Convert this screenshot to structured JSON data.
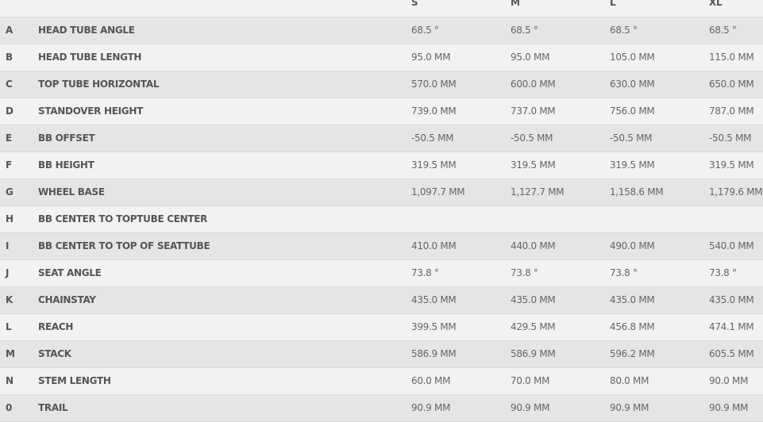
{
  "headers": [
    "",
    "",
    "S",
    "M",
    "L",
    "XL"
  ],
  "rows": [
    {
      "key": "A",
      "label": "HEAD TUBE ANGLE",
      "values": [
        "68.5 °",
        "68.5 °",
        "68.5 °",
        "68.5 °"
      ]
    },
    {
      "key": "B",
      "label": "HEAD TUBE LENGTH",
      "values": [
        "95.0 MM",
        "95.0 MM",
        "105.0 MM",
        "115.0 MM"
      ]
    },
    {
      "key": "C",
      "label": "TOP TUBE HORIZONTAL",
      "values": [
        "570.0 MM",
        "600.0 MM",
        "630.0 MM",
        "650.0 MM"
      ]
    },
    {
      "key": "D",
      "label": "STANDOVER HEIGHT",
      "values": [
        "739.0 MM",
        "737.0 MM",
        "756.0 MM",
        "787.0 MM"
      ]
    },
    {
      "key": "E",
      "label": "BB OFFSET",
      "values": [
        "-50.5 MM",
        "-50.5 MM",
        "-50.5 MM",
        "-50.5 MM"
      ]
    },
    {
      "key": "F",
      "label": "BB HEIGHT",
      "values": [
        "319.5 MM",
        "319.5 MM",
        "319.5 MM",
        "319.5 MM"
      ]
    },
    {
      "key": "G",
      "label": "WHEEL BASE",
      "values": [
        "1,097.7 MM",
        "1,127.7 MM",
        "1,158.6 MM",
        "1,179.6 MM"
      ]
    },
    {
      "key": "H",
      "label": "BB CENTER TO TOPTUBE CENTER",
      "values": [
        "",
        "",
        "",
        ""
      ]
    },
    {
      "key": "I",
      "label": "BB CENTER TO TOP OF SEATTUBE",
      "values": [
        "410.0 MM",
        "440.0 MM",
        "490.0 MM",
        "540.0 MM"
      ]
    },
    {
      "key": "J",
      "label": "SEAT ANGLE",
      "values": [
        "73.8 °",
        "73.8 °",
        "73.8 °",
        "73.8 °"
      ]
    },
    {
      "key": "K",
      "label": "CHAINSTAY",
      "values": [
        "435.0 MM",
        "435.0 MM",
        "435.0 MM",
        "435.0 MM"
      ]
    },
    {
      "key": "L",
      "label": "REACH",
      "values": [
        "399.5 MM",
        "429.5 MM",
        "456.8 MM",
        "474.1 MM"
      ]
    },
    {
      "key": "M",
      "label": "STACK",
      "values": [
        "586.9 MM",
        "586.9 MM",
        "596.2 MM",
        "605.5 MM"
      ]
    },
    {
      "key": "N",
      "label": "STEM LENGTH",
      "values": [
        "60.0 MM",
        "70.0 MM",
        "80.0 MM",
        "90.0 MM"
      ]
    },
    {
      "key": "0",
      "label": "TRAIL",
      "values": [
        "90.9 MM",
        "90.9 MM",
        "90.9 MM",
        "90.9 MM"
      ]
    }
  ]
}
